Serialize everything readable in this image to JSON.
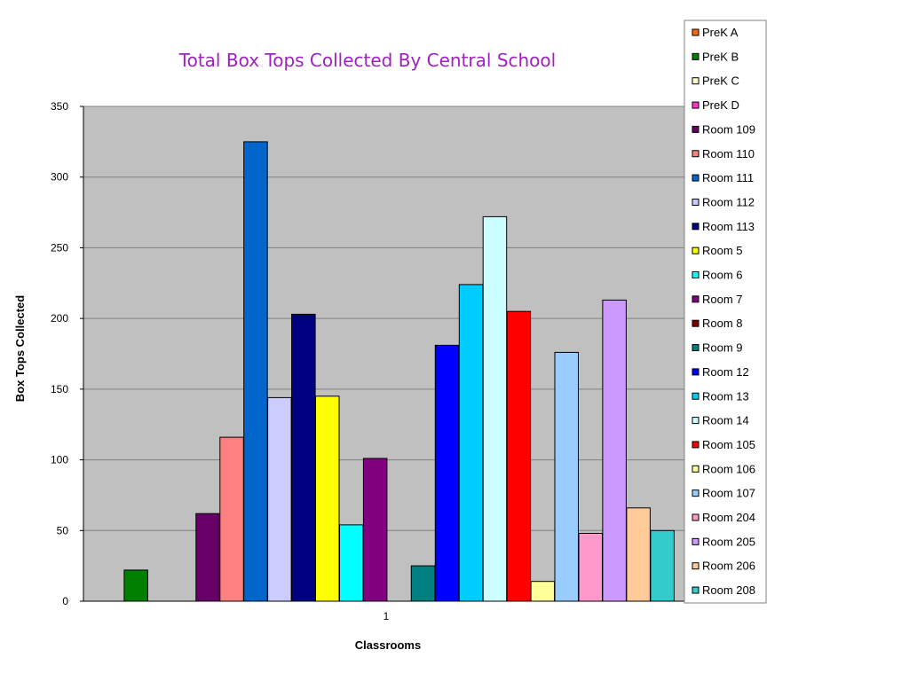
{
  "chart_data": {
    "type": "bar",
    "title": "Total Box Tops Collected By Central School",
    "xlabel": "Classrooms",
    "ylabel": "Box Tops Collected",
    "categories": [
      "1"
    ],
    "ylim": [
      0,
      350
    ],
    "yticks": [
      0,
      50,
      100,
      150,
      200,
      250,
      300,
      350
    ],
    "grid": true,
    "legend_position": "right",
    "plot_background": "#c0c0c0",
    "series": [
      {
        "name": "PreK A",
        "values": [
          0
        ],
        "color": "#ff6600"
      },
      {
        "name": "PreK B",
        "values": [
          22
        ],
        "color": "#008000"
      },
      {
        "name": "PreK C",
        "values": [
          0
        ],
        "color": "#ffffcc"
      },
      {
        "name": "PreK D",
        "values": [
          0
        ],
        "color": "#ff33cc"
      },
      {
        "name": "Room 109",
        "values": [
          62
        ],
        "color": "#660066"
      },
      {
        "name": "Room 110",
        "values": [
          116
        ],
        "color": "#ff8080"
      },
      {
        "name": "Room 111",
        "values": [
          325
        ],
        "color": "#0066cc"
      },
      {
        "name": "Room 112",
        "values": [
          144
        ],
        "color": "#ccccff"
      },
      {
        "name": "Room 113",
        "values": [
          203
        ],
        "color": "#000080"
      },
      {
        "name": "Room 5",
        "values": [
          145
        ],
        "color": "#ffff00"
      },
      {
        "name": "Room 6",
        "values": [
          54
        ],
        "color": "#00ffff"
      },
      {
        "name": "Room 7",
        "values": [
          101
        ],
        "color": "#800080"
      },
      {
        "name": "Room 8",
        "values": [
          0
        ],
        "color": "#800000"
      },
      {
        "name": "Room 9",
        "values": [
          25
        ],
        "color": "#008080"
      },
      {
        "name": "Room 12",
        "values": [
          181
        ],
        "color": "#0000ff"
      },
      {
        "name": "Room 13",
        "values": [
          224
        ],
        "color": "#00ccff"
      },
      {
        "name": "Room 14",
        "values": [
          272
        ],
        "color": "#ccffff"
      },
      {
        "name": "Room 105",
        "values": [
          205
        ],
        "color": "#ff0000"
      },
      {
        "name": "Room 106",
        "values": [
          14
        ],
        "color": "#ffff99"
      },
      {
        "name": "Room 107",
        "values": [
          176
        ],
        "color": "#99ccff"
      },
      {
        "name": "Room 204",
        "values": [
          48
        ],
        "color": "#ff99cc"
      },
      {
        "name": "Room 205",
        "values": [
          213
        ],
        "color": "#cc99ff"
      },
      {
        "name": "Room 206",
        "values": [
          66
        ],
        "color": "#ffcc99"
      },
      {
        "name": "Room 208",
        "values": [
          50
        ],
        "color": "#33cccc"
      }
    ]
  }
}
